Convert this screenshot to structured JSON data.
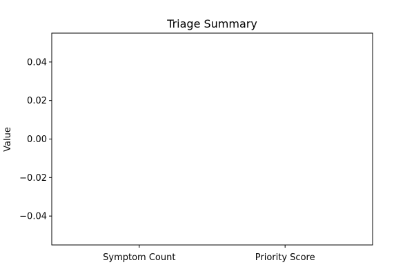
{
  "chart_data": {
    "type": "bar",
    "title": "Triage Summary",
    "xlabel": "",
    "ylabel": "Value",
    "categories": [
      "Symptom Count",
      "Priority Score"
    ],
    "values": [
      0,
      0
    ],
    "ylim": [
      -0.055,
      0.055
    ],
    "yticks": [
      0.04,
      0.02,
      0.0,
      -0.02,
      -0.04
    ],
    "ytick_labels": [
      "0.04",
      "0.02",
      "0.00",
      "−0.02",
      "−0.04"
    ],
    "grid": false,
    "colors": {
      "axis": "#000000",
      "background": "#ffffff",
      "bar": "#1f77b4"
    }
  }
}
